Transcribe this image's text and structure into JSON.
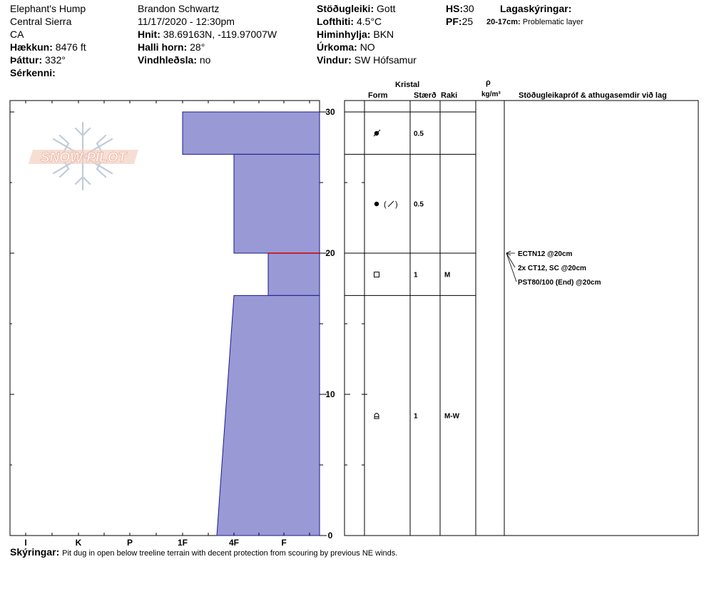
{
  "site": {
    "name": "Elephant's Hump",
    "range": "Central Sierra",
    "state": "CA",
    "elevation_label": "Hækkun:",
    "elevation": "8476 ft",
    "aspect_label": "Þáttur:",
    "aspect": "332°",
    "features_label": "Sérkenni:"
  },
  "observer": {
    "name": "Brandon Schwartz",
    "datetime": "11/17/2020 - 12:30pm",
    "coords_label": "Hnit:",
    "coords": "38.69163N, -119.97007W",
    "slope_label": "Halli horn:",
    "slope": "28°",
    "wind_loading_label": "Vindhleðsla:",
    "wind_loading": "no"
  },
  "conditions": {
    "stability_label": "Stöðugleiki:",
    "stability": "Gott",
    "air_temp_label": "Lofthiti:",
    "air_temp": "4.5°C",
    "sky_label": "Himinhylja:",
    "sky": "BKN",
    "precip_label": "Úrkoma:",
    "precip": "NO",
    "wind_label": "Vindur:",
    "wind": "SW Hófsamur"
  },
  "depths": {
    "hs_label": "HS:",
    "hs": "30",
    "pf_label": "PF:",
    "pf": "25"
  },
  "legend": {
    "title": "Lagaskýringar:",
    "range": "20-17cm:",
    "text": "Problematic layer"
  },
  "columns": {
    "crystal": "Kristal",
    "form": "Form",
    "size": "Stærð",
    "moisture": "Raki",
    "rho": "ρ",
    "density_unit": "kg/m³",
    "tests_header": "Stöðugleikapróf & athugasemdir við lag"
  },
  "comments": {
    "label": "Skýringar:",
    "text": "Pit dug in open below treeline terrain with decent protection from scouring by previous NE winds."
  },
  "logo": {
    "text": "SNOW PILOT"
  },
  "colors": {
    "layer_fill": "#9999d6",
    "layer_stroke": "#1a1a8c",
    "weak_layer": "#cc0000",
    "logo": "#e6a08a"
  },
  "chart_data": {
    "type": "area",
    "xlabel": "",
    "ylabel": "",
    "hardness_ticks": [
      "I",
      "K",
      "P",
      "1F",
      "4F",
      "F"
    ],
    "y_ticks": [
      "30",
      "20",
      "10",
      "0"
    ],
    "ylim": [
      0,
      30
    ],
    "layers": [
      {
        "top": 30,
        "bottom": 27,
        "hardness_top": "1F",
        "hardness_bottom": "1F",
        "form": "graupel",
        "size": "0.5",
        "moisture": ""
      },
      {
        "top": 27,
        "bottom": 20,
        "hardness_top": "4F",
        "hardness_bottom": "4F",
        "form": "precipitation-particles / decomposing",
        "size": "0.5",
        "moisture": ""
      },
      {
        "top": 20,
        "bottom": 17,
        "hardness_top": "4F-F",
        "hardness_bottom": "4F-F",
        "form": "faceted",
        "size": "1",
        "moisture": "M"
      },
      {
        "top": 17,
        "bottom": 0,
        "hardness_top": "4F",
        "hardness_bottom": "1F-4F",
        "form": "melt-freeze",
        "size": "1",
        "moisture": "M-W"
      }
    ],
    "weak_layer_depth": 20,
    "tests": [
      {
        "label": "ECTN12 @20cm",
        "depth": 20
      },
      {
        "label": "2x CT12, SC @20cm",
        "depth": 20
      },
      {
        "label": "PST80/100 (End) @20cm",
        "depth": 20
      }
    ]
  }
}
